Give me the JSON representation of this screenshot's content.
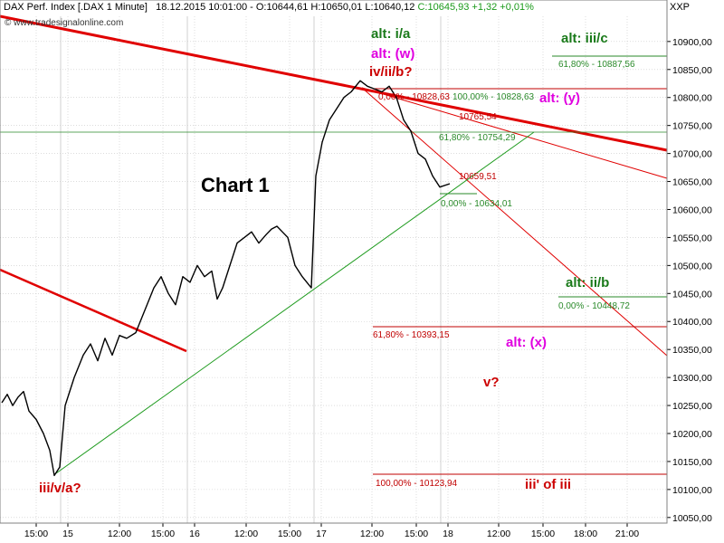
{
  "header": {
    "instrument": "DAX Perf. Index [.DAX  1 Minute]",
    "quote": "18.12.2015 10:01:00 - O:10644,61 H:10650,01 L:10640,12",
    "change": "C:10645,93 +1,32 +0,01%",
    "symbol": "XXP",
    "source": "www.tradesignalonline.com"
  },
  "colors": {
    "price": "#000000",
    "trend_red": "#e00000",
    "fib_red": "#c00000",
    "fib_green": "#2a8a2a",
    "support_green": "#1e9b1e",
    "label_green": "#1a7a1a",
    "label_red": "#cc0000",
    "label_magenta": "#e000e0",
    "grid": "#c8c8c8",
    "session_sep": "#d0d0d0"
  },
  "chart_data": {
    "type": "line",
    "title": "Chart 1",
    "xlabel": "",
    "ylabel": "",
    "ylim": [
      10040,
      10945
    ],
    "grid": true,
    "y_axis_position": "right",
    "y_ticks": [
      10050,
      10100,
      10150,
      10200,
      10250,
      10300,
      10350,
      10400,
      10450,
      10500,
      10550,
      10600,
      10650,
      10700,
      10750,
      10800,
      10850,
      10900
    ],
    "y_tick_labels": [
      "10050,00",
      "10100,00",
      "10150,00",
      "10200,00",
      "10250,00",
      "10300,00",
      "10350,00",
      "10400,00",
      "10450,00",
      "10500,00",
      "10550,00",
      "10600,00",
      "10650,00",
      "10700,00",
      "10750,00",
      "10800,00",
      "10850,00",
      "10900,00"
    ],
    "x_ticks": [
      "15:00",
      "15",
      "12:00",
      "15:00",
      "16",
      "12:00",
      "15:00",
      "17",
      "12:00",
      "15:00",
      "18",
      "12:00",
      "15:00",
      "18:00",
      "21:00"
    ],
    "series": [
      {
        "values": [
          10255,
          10270,
          10250,
          10265,
          10275,
          10240,
          10225,
          10200,
          10170,
          10125,
          10140,
          10250,
          10300,
          10340,
          10360,
          10330,
          10370,
          10340,
          10375,
          10370,
          10380,
          10420,
          10460,
          10480,
          10450,
          10430,
          10480,
          10470,
          10500,
          10480,
          10490,
          10440,
          10460,
          10500,
          10540,
          10550,
          10560,
          10540,
          10555,
          10565,
          10570,
          10560,
          10550,
          10500,
          10480,
          10460,
          10660,
          10720,
          10760,
          10780,
          10800,
          10810,
          10830,
          10820,
          10815,
          10810,
          10820,
          10800,
          10760,
          10740,
          10700,
          10690,
          10660,
          10640,
          10646
        ]
      }
    ],
    "annotations": {
      "fib_levels": [
        {
          "text": "61,80% - 10887,56"
        },
        {
          "text": "100,00% - 10828,63"
        },
        {
          "text": "61,80% - 10754,29"
        },
        {
          "text": "0,00% - 10634,01"
        },
        {
          "text": "0,00% - 10448,72"
        },
        {
          "text": "61,80% - 10393,15"
        },
        {
          "text": "100,00% - 10123,94"
        },
        {
          "text": "10765,54"
        },
        {
          "text": "10659,51"
        },
        {
          "text": "0,00% - 10828,63"
        }
      ],
      "wave_labels": [
        {
          "text": "alt: i/a"
        },
        {
          "text": "alt: (w)"
        },
        {
          "text": "iv/ii/b?"
        },
        {
          "text": "alt: iii/c"
        },
        {
          "text": "alt: (y)"
        },
        {
          "text": "alt: ii/b"
        },
        {
          "text": "alt: (x)"
        },
        {
          "text": "v?"
        },
        {
          "text": "iii/v/a?"
        },
        {
          "text": "iii' of iii"
        }
      ]
    }
  }
}
